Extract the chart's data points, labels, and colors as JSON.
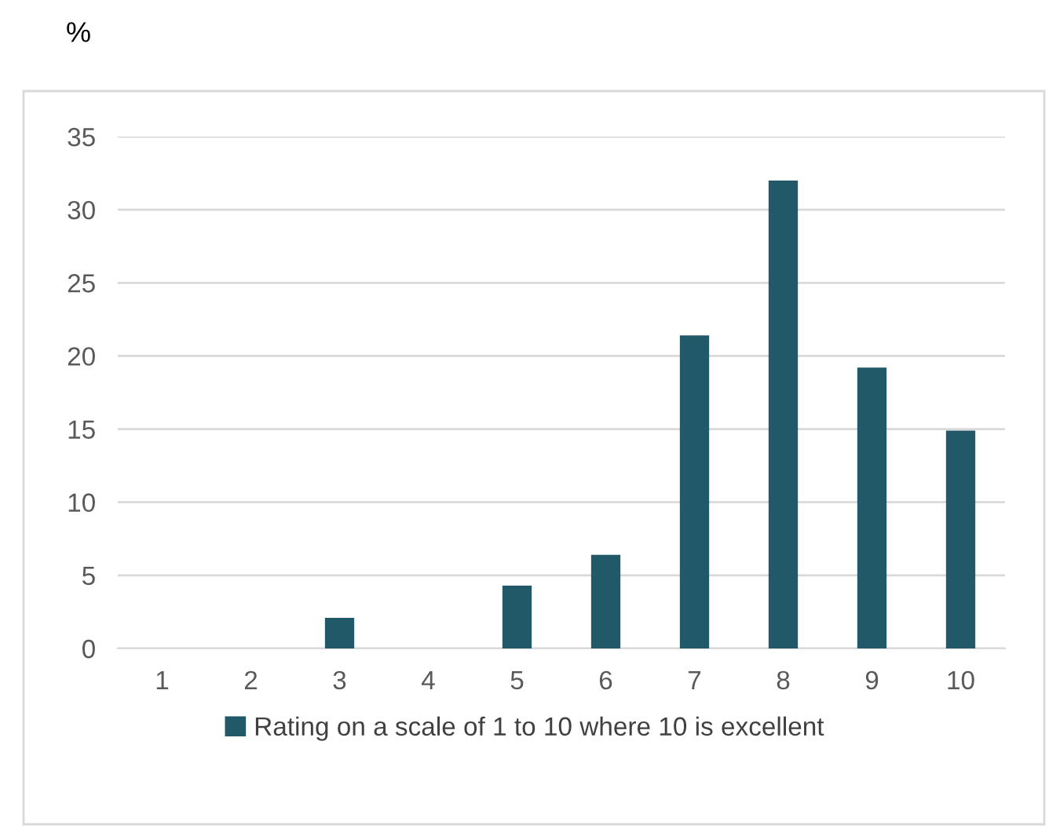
{
  "chart_data": {
    "type": "bar",
    "ylabel": "%",
    "categories": [
      "1",
      "2",
      "3",
      "4",
      "5",
      "6",
      "7",
      "8",
      "9",
      "10"
    ],
    "series": [
      {
        "name": "Rating on a scale of 1 to 10 where 10 is excellent",
        "color": "#215968",
        "values": [
          0,
          0,
          2.1,
          0,
          4.3,
          6.4,
          21.4,
          32.0,
          19.2,
          14.9
        ]
      }
    ],
    "ylim": [
      0,
      35
    ],
    "yticks": [
      0,
      5,
      10,
      15,
      20,
      25,
      30,
      35
    ],
    "grid": "y",
    "legend": "bottom"
  }
}
